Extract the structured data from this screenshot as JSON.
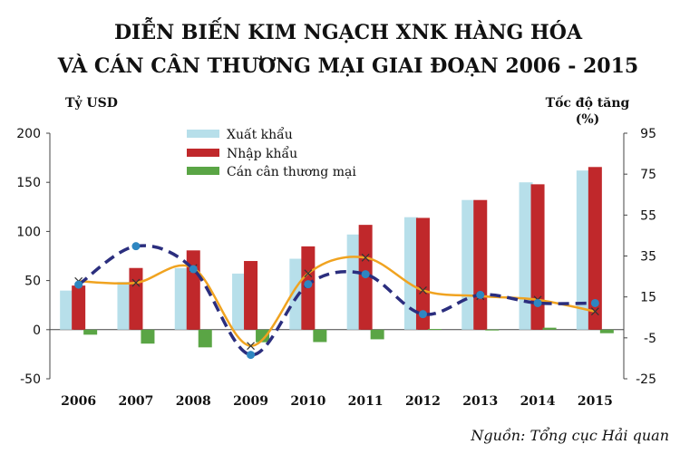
{
  "chart_data": {
    "type": "bar",
    "title_lines": [
      "DIỄN BIẾN KIM NGẠCH XNK HÀNG HÓA",
      "VÀ CÁN CÂN THƯƠNG MẠI GIAI ĐOẠN 2006 - 2015"
    ],
    "ylabel_left": "Tỷ USD",
    "ylabel_right_lines": [
      "Tốc độ tăng",
      "(%)"
    ],
    "categories": [
      "2006",
      "2007",
      "2008",
      "2009",
      "2010",
      "2011",
      "2012",
      "2013",
      "2014",
      "2015"
    ],
    "ylim_left": [
      -50,
      200
    ],
    "yticks_left": [
      "200",
      "150",
      "100",
      "50",
      "0",
      "-50"
    ],
    "ylim_right": [
      -25,
      95
    ],
    "yticks_right": [
      "95",
      "75",
      "55",
      "35",
      "15",
      "-5",
      "-25"
    ],
    "bar_series": [
      {
        "name": "Xuất khẩu",
        "color": "#b7dfea",
        "values": [
          39.8,
          48.6,
          62.7,
          57.1,
          72.2,
          96.9,
          114.5,
          132.0,
          150.0,
          162.0
        ]
      },
      {
        "name": "Nhập khẩu",
        "color": "#c0282b",
        "values": [
          44.9,
          62.8,
          80.7,
          69.9,
          84.8,
          106.7,
          113.8,
          132.0,
          148.0,
          165.6
        ]
      },
      {
        "name": "Cán cân thương mại",
        "color": "#5aa545",
        "values": [
          -5.1,
          -14.2,
          -18.0,
          -12.8,
          -12.6,
          -9.8,
          0.7,
          0.1,
          2.0,
          -3.6
        ]
      }
    ],
    "line_series": [
      {
        "color": "#f0a320",
        "values": [
          22.7,
          21.9,
          29.1,
          -8.9,
          26.5,
          34.2,
          18.2,
          15.4,
          13.6,
          7.9
        ]
      },
      {
        "color": "#2b2e7e",
        "values": [
          21.0,
          39.8,
          28.6,
          -13.3,
          21.2,
          26.1,
          6.6,
          16.0,
          12.0,
          12.0
        ]
      }
    ],
    "legend_position": "top-left",
    "grid": false
  },
  "source": "Nguồn: Tổng cục Hải quan"
}
